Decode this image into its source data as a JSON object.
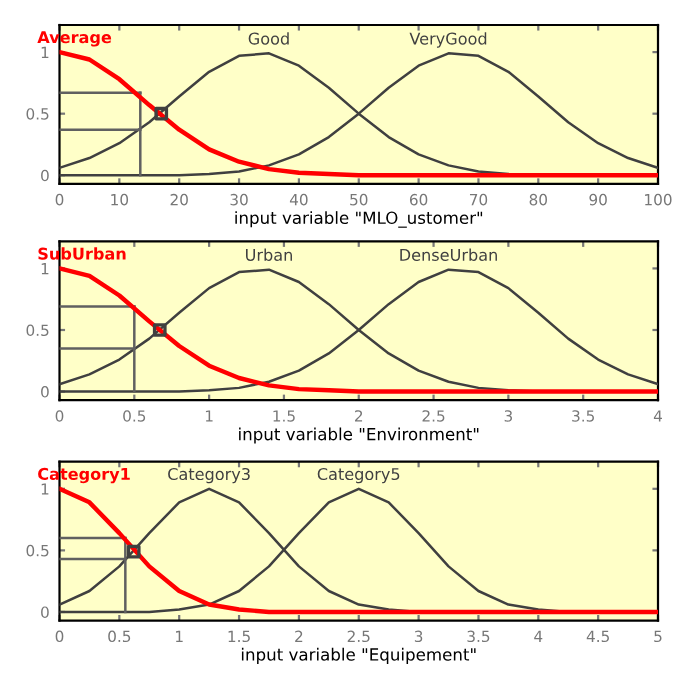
{
  "chart_data": [
    {
      "type": "line",
      "xlabel": "input variable \"MLO_ustomer\"",
      "xlim": [
        0,
        100
      ],
      "xticks": [
        0,
        10,
        20,
        30,
        40,
        50,
        60,
        70,
        80,
        90,
        100
      ],
      "ylim": [
        -0.07,
        1.22
      ],
      "yticks": [
        0,
        0.5,
        1
      ],
      "x": [
        0,
        5,
        10,
        15,
        20,
        25,
        30,
        35,
        40,
        45,
        50,
        55,
        60,
        65,
        70,
        75,
        80,
        85,
        90,
        95,
        100
      ],
      "series": [
        {
          "name": "Average",
          "color": "#ff0000",
          "values": [
            1,
            0.94,
            0.78,
            0.57,
            0.37,
            0.21,
            0.11,
            0.05,
            0.02,
            0.01,
            0,
            0,
            0,
            0,
            0,
            0,
            0,
            0,
            0,
            0,
            0
          ]
        },
        {
          "name": "Good",
          "color": "#404040",
          "values": [
            0.06,
            0.14,
            0.26,
            0.43,
            0.64,
            0.84,
            0.97,
            0.99,
            0.89,
            0.71,
            0.5,
            0.31,
            0.17,
            0.08,
            0.03,
            0.01,
            0,
            0,
            0,
            0,
            0
          ]
        },
        {
          "name": "VeryGood",
          "color": "#404040",
          "values": [
            0,
            0,
            0,
            0,
            0,
            0.01,
            0.03,
            0.08,
            0.17,
            0.31,
            0.5,
            0.71,
            0.89,
            0.99,
            0.97,
            0.84,
            0.64,
            0.43,
            0.26,
            0.14,
            0.06
          ]
        },
        {
          "type": "line",
          "color": "#606060",
          "x": [
            13.5,
            13.5
          ],
          "values": [
            0.67,
            0
          ]
        },
        {
          "type": "line",
          "color": "#606060",
          "x": [
            13.5,
            0
          ],
          "values": [
            0.67,
            0.67
          ]
        },
        {
          "type": "line",
          "color": "#606060",
          "x": [
            13.5,
            0
          ],
          "values": [
            0.37,
            0.37
          ]
        },
        {
          "type": "scatter",
          "marker": "square",
          "color": "#404040",
          "x": [
            17
          ],
          "values": [
            0.5
          ]
        }
      ]
    },
    {
      "type": "line",
      "xlabel": "input variable \"Environment\"",
      "xlim": [
        0,
        4
      ],
      "xticks": [
        0,
        0.5,
        1,
        1.5,
        2,
        2.5,
        3,
        3.5,
        4
      ],
      "ylim": [
        -0.07,
        1.22
      ],
      "yticks": [
        0,
        0.5,
        1
      ],
      "x": [
        0,
        0.2,
        0.4,
        0.6,
        0.8,
        1,
        1.2,
        1.4,
        1.6,
        1.8,
        2,
        2.2,
        2.4,
        2.6,
        2.8,
        3,
        3.2,
        3.4,
        3.6,
        3.8,
        4
      ],
      "series": [
        {
          "name": "SubUrban",
          "color": "#ff0000",
          "values": [
            1,
            0.94,
            0.78,
            0.57,
            0.37,
            0.21,
            0.11,
            0.05,
            0.02,
            0.01,
            0,
            0,
            0,
            0,
            0,
            0,
            0,
            0,
            0,
            0,
            0
          ]
        },
        {
          "name": "Urban",
          "color": "#404040",
          "values": [
            0.06,
            0.14,
            0.26,
            0.43,
            0.64,
            0.84,
            0.97,
            0.99,
            0.89,
            0.71,
            0.5,
            0.31,
            0.17,
            0.08,
            0.03,
            0.01,
            0,
            0,
            0,
            0,
            0
          ]
        },
        {
          "name": "DenseUrban",
          "color": "#404040",
          "values": [
            0,
            0,
            0,
            0,
            0,
            0.01,
            0.03,
            0.08,
            0.17,
            0.31,
            0.5,
            0.71,
            0.89,
            0.99,
            0.97,
            0.84,
            0.64,
            0.43,
            0.26,
            0.14,
            0.06
          ]
        },
        {
          "type": "line",
          "color": "#606060",
          "x": [
            0.5,
            0.5
          ],
          "values": [
            0.69,
            0
          ]
        },
        {
          "type": "line",
          "color": "#606060",
          "x": [
            0.5,
            0
          ],
          "values": [
            0.69,
            0.69
          ]
        },
        {
          "type": "line",
          "color": "#606060",
          "x": [
            0.5,
            0
          ],
          "values": [
            0.35,
            0.35
          ]
        },
        {
          "type": "scatter",
          "marker": "square",
          "color": "#404040",
          "x": [
            0.67
          ],
          "values": [
            0.5
          ]
        }
      ]
    },
    {
      "type": "line",
      "xlabel": "input variable \"Equipement\"",
      "xlim": [
        0,
        5
      ],
      "xticks": [
        0,
        0.5,
        1,
        1.5,
        2,
        2.5,
        3,
        3.5,
        4,
        4.5,
        5
      ],
      "ylim": [
        -0.07,
        1.22
      ],
      "yticks": [
        0,
        0.5,
        1
      ],
      "x": [
        0,
        0.25,
        0.5,
        0.75,
        1,
        1.25,
        1.5,
        1.75,
        2,
        2.25,
        2.5,
        2.75,
        3,
        3.25,
        3.5,
        3.75,
        4,
        4.25,
        4.5,
        4.75,
        5
      ],
      "series": [
        {
          "name": "Category1",
          "color": "#ff0000",
          "values": [
            1,
            0.89,
            0.64,
            0.37,
            0.17,
            0.06,
            0.02,
            0,
            0,
            0,
            0,
            0,
            0,
            0,
            0,
            0,
            0,
            0,
            0,
            0,
            0
          ]
        },
        {
          "name": "Category3",
          "color": "#404040",
          "values": [
            0.06,
            0.17,
            0.37,
            0.64,
            0.89,
            1,
            0.89,
            0.64,
            0.37,
            0.17,
            0.06,
            0.02,
            0,
            0,
            0,
            0,
            0,
            0,
            0,
            0,
            0
          ]
        },
        {
          "name": "Category5",
          "color": "#404040",
          "values": [
            0,
            0,
            0,
            0,
            0.02,
            0.06,
            0.17,
            0.37,
            0.64,
            0.89,
            1,
            0.89,
            0.64,
            0.37,
            0.17,
            0.06,
            0.02,
            0,
            0,
            0,
            0
          ]
        },
        {
          "type": "line",
          "color": "#606060",
          "x": [
            0.55,
            0.55
          ],
          "values": [
            0.6,
            0
          ]
        },
        {
          "type": "line",
          "color": "#606060",
          "x": [
            0.55,
            0
          ],
          "values": [
            0.6,
            0.6
          ]
        },
        {
          "type": "line",
          "color": "#606060",
          "x": [
            0.55,
            0
          ],
          "values": [
            0.43,
            0.43
          ]
        },
        {
          "type": "scatter",
          "marker": "square",
          "color": "#404040",
          "x": [
            0.62
          ],
          "values": [
            0.49
          ]
        }
      ]
    }
  ]
}
